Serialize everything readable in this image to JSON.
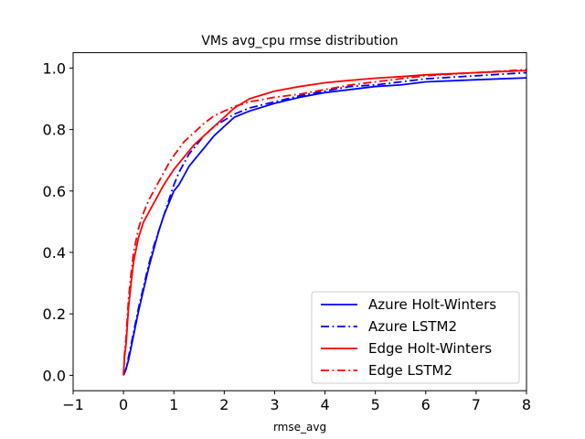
{
  "chart_data": {
    "type": "line",
    "title": "VMs avg_cpu rmse distribution",
    "xlabel": "rmse_avg",
    "ylabel": "",
    "xlim": [
      -1,
      8
    ],
    "ylim": [
      -0.05,
      1.05
    ],
    "xticks": [
      -1,
      0,
      1,
      2,
      3,
      4,
      5,
      6,
      7,
      8
    ],
    "xtick_labels": [
      "−1",
      "0",
      "1",
      "2",
      "3",
      "4",
      "5",
      "6",
      "7",
      "8"
    ],
    "yticks": [
      0.0,
      0.2,
      0.4,
      0.6,
      0.8,
      1.0
    ],
    "ytick_labels": [
      "0.0",
      "0.2",
      "0.4",
      "0.6",
      "0.8",
      "1.0"
    ],
    "grid": false,
    "legend_position": "lower-right",
    "series": [
      {
        "name": "Azure Holt-Winters",
        "color": "#0000ff",
        "linestyle": "solid",
        "x": [
          0,
          0.05,
          0.1,
          0.2,
          0.3,
          0.4,
          0.5,
          0.6,
          0.7,
          0.8,
          0.9,
          1.0,
          1.1,
          1.2,
          1.3,
          1.4,
          1.5,
          1.6,
          1.8,
          2.0,
          2.2,
          2.5,
          3.0,
          3.5,
          4.0,
          4.5,
          5.0,
          5.5,
          6.0,
          7.0,
          8.0
        ],
        "y": [
          0,
          0.02,
          0.05,
          0.13,
          0.21,
          0.28,
          0.35,
          0.41,
          0.47,
          0.52,
          0.56,
          0.6,
          0.62,
          0.65,
          0.68,
          0.7,
          0.72,
          0.74,
          0.78,
          0.81,
          0.84,
          0.86,
          0.885,
          0.905,
          0.92,
          0.93,
          0.94,
          0.945,
          0.955,
          0.962,
          0.968
        ]
      },
      {
        "name": "Azure LSTM2",
        "color": "#0000ff",
        "linestyle": "dashdot",
        "x": [
          0,
          0.05,
          0.1,
          0.2,
          0.3,
          0.4,
          0.5,
          0.6,
          0.7,
          0.8,
          0.9,
          1.0,
          1.1,
          1.2,
          1.3,
          1.4,
          1.5,
          1.6,
          1.8,
          2.0,
          2.2,
          2.5,
          3.0,
          3.5,
          4.0,
          4.5,
          5.0,
          5.5,
          6.0,
          7.0,
          8.0
        ],
        "y": [
          0,
          0.02,
          0.06,
          0.14,
          0.22,
          0.29,
          0.36,
          0.42,
          0.47,
          0.52,
          0.57,
          0.62,
          0.66,
          0.69,
          0.72,
          0.74,
          0.76,
          0.78,
          0.81,
          0.83,
          0.85,
          0.87,
          0.89,
          0.91,
          0.925,
          0.94,
          0.945,
          0.955,
          0.965,
          0.975,
          0.985
        ]
      },
      {
        "name": "Edge Holt-Winters",
        "color": "#ff0000",
        "linestyle": "solid",
        "x": [
          0,
          0.02,
          0.05,
          0.1,
          0.15,
          0.2,
          0.3,
          0.4,
          0.5,
          0.6,
          0.7,
          0.8,
          0.9,
          1.0,
          1.2,
          1.4,
          1.6,
          1.8,
          2.0,
          2.2,
          2.5,
          3.0,
          3.5,
          4.0,
          4.5,
          5.0,
          5.5,
          6.0,
          7.0,
          8.0
        ],
        "y": [
          0,
          0.06,
          0.1,
          0.22,
          0.3,
          0.37,
          0.45,
          0.5,
          0.53,
          0.56,
          0.59,
          0.62,
          0.645,
          0.67,
          0.71,
          0.75,
          0.78,
          0.81,
          0.84,
          0.87,
          0.9,
          0.925,
          0.94,
          0.952,
          0.96,
          0.967,
          0.972,
          0.978,
          0.985,
          0.992
        ]
      },
      {
        "name": "Edge LSTM2",
        "color": "#ff0000",
        "linestyle": "dashdot",
        "x": [
          0,
          0.02,
          0.05,
          0.1,
          0.15,
          0.2,
          0.3,
          0.4,
          0.5,
          0.6,
          0.7,
          0.8,
          0.9,
          1.0,
          1.2,
          1.4,
          1.6,
          1.8,
          2.0,
          2.2,
          2.5,
          3.0,
          3.5,
          4.0,
          4.5,
          5.0,
          5.5,
          6.0,
          7.0,
          8.0
        ],
        "y": [
          0,
          0.07,
          0.12,
          0.25,
          0.33,
          0.4,
          0.48,
          0.53,
          0.57,
          0.6,
          0.63,
          0.66,
          0.69,
          0.715,
          0.76,
          0.79,
          0.82,
          0.845,
          0.86,
          0.875,
          0.89,
          0.905,
          0.915,
          0.93,
          0.945,
          0.955,
          0.965,
          0.975,
          0.985,
          0.995
        ]
      }
    ]
  }
}
